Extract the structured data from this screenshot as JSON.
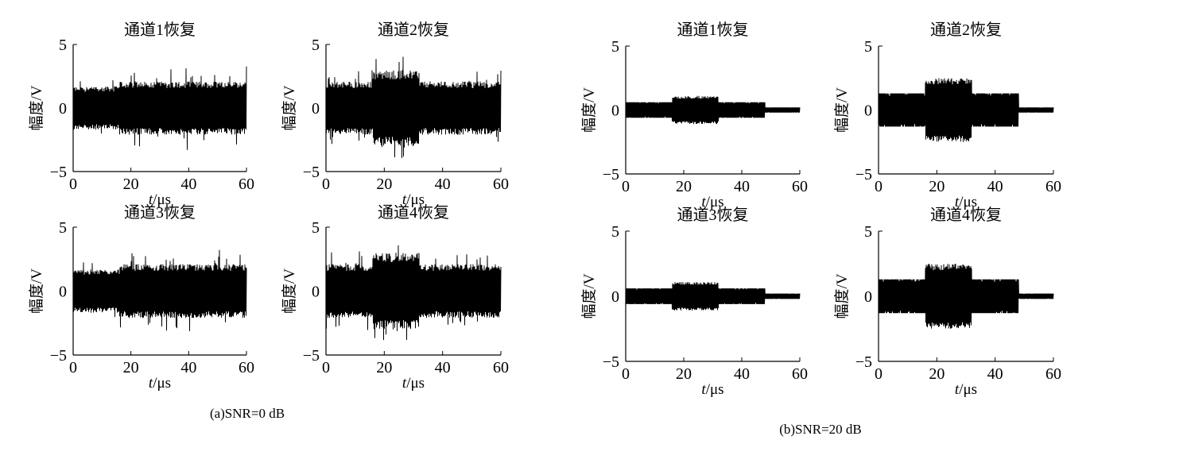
{
  "captions": [
    "(a)SNR=0 dB",
    "(b)SNR=20 dB"
  ],
  "chart_data": [
    {
      "type": "line",
      "panel": "(a)SNR=0 dB",
      "title": "通道1恢复",
      "xlabel_var": "t",
      "xlabel_unit": "/μs",
      "ylabel": "幅度/V",
      "xlim": [
        0,
        60
      ],
      "ylim": [
        -5,
        5
      ],
      "xticks": [
        "0",
        "20",
        "40",
        "60"
      ],
      "yticks": [
        "5",
        "0",
        "−5"
      ],
      "grid": false,
      "color": "#000000",
      "envelope": [
        {
          "t": [
            0,
            16
          ],
          "amp": 1.7,
          "peak": 2.4
        },
        {
          "t": [
            16,
            60
          ],
          "amp": 2.1,
          "peak": 3.2
        }
      ]
    },
    {
      "type": "line",
      "panel": "(a)SNR=0 dB",
      "title": "通道2恢复",
      "xlabel_var": "t",
      "xlabel_unit": "/μs",
      "ylabel": "幅度/V",
      "xlim": [
        0,
        60
      ],
      "ylim": [
        -5,
        5
      ],
      "xticks": [
        "0",
        "20",
        "40",
        "60"
      ],
      "yticks": [
        "5",
        "0",
        "−5"
      ],
      "grid": false,
      "color": "#000000",
      "envelope": [
        {
          "t": [
            0,
            16
          ],
          "amp": 2.1,
          "peak": 3.1
        },
        {
          "t": [
            16,
            32
          ],
          "amp": 3.0,
          "peak": 4.2
        },
        {
          "t": [
            32,
            60
          ],
          "amp": 2.1,
          "peak": 3.0
        }
      ]
    },
    {
      "type": "line",
      "panel": "(a)SNR=0 dB",
      "title": "通道3恢复",
      "xlabel_var": "t",
      "xlabel_unit": "/μs",
      "ylabel": "幅度/V",
      "xlim": [
        0,
        60
      ],
      "ylim": [
        -5,
        5
      ],
      "xticks": [
        "0",
        "20",
        "40",
        "60"
      ],
      "yticks": [
        "5",
        "0",
        "−5"
      ],
      "grid": false,
      "color": "#000000",
      "envelope": [
        {
          "t": [
            0,
            16
          ],
          "amp": 1.7,
          "peak": 2.4
        },
        {
          "t": [
            16,
            60
          ],
          "amp": 2.1,
          "peak": 3.2
        }
      ]
    },
    {
      "type": "line",
      "panel": "(a)SNR=0 dB",
      "title": "通道4恢复",
      "xlabel_var": "t",
      "xlabel_unit": "/μs",
      "ylabel": "幅度/V",
      "xlim": [
        0,
        60
      ],
      "ylim": [
        -5,
        5
      ],
      "xticks": [
        "0",
        "20",
        "40",
        "60"
      ],
      "yticks": [
        "5",
        "0",
        "−5"
      ],
      "grid": false,
      "color": "#000000",
      "envelope": [
        {
          "t": [
            0,
            16
          ],
          "amp": 2.1,
          "peak": 3.2
        },
        {
          "t": [
            16,
            32
          ],
          "amp": 3.0,
          "peak": 4.2
        },
        {
          "t": [
            32,
            60
          ],
          "amp": 2.1,
          "peak": 3.0
        }
      ]
    },
    {
      "type": "line",
      "panel": "(b)SNR=20 dB",
      "title": "通道1恢复",
      "xlabel_var": "t",
      "xlabel_unit": "/μs",
      "ylabel": "幅度/V",
      "xlim": [
        0,
        60
      ],
      "ylim": [
        -5,
        5
      ],
      "xticks": [
        "0",
        "20",
        "40",
        "60"
      ],
      "yticks": [
        "5",
        "0",
        "−5"
      ],
      "grid": false,
      "color": "#000000",
      "envelope": [
        {
          "t": [
            0,
            16
          ],
          "amp": 0.6,
          "peak": 0.7
        },
        {
          "t": [
            16,
            32
          ],
          "amp": 1.1,
          "peak": 1.2
        },
        {
          "t": [
            32,
            48
          ],
          "amp": 0.6,
          "peak": 0.7
        },
        {
          "t": [
            48,
            60
          ],
          "amp": 0.2,
          "peak": 0.25
        }
      ]
    },
    {
      "type": "line",
      "panel": "(b)SNR=20 dB",
      "title": "通道2恢复",
      "xlabel_var": "t",
      "xlabel_unit": "/μs",
      "ylabel": "幅度/V",
      "xlim": [
        0,
        60
      ],
      "ylim": [
        -5,
        5
      ],
      "xticks": [
        "0",
        "20",
        "40",
        "60"
      ],
      "yticks": [
        "5",
        "0",
        "−5"
      ],
      "grid": false,
      "color": "#000000",
      "envelope": [
        {
          "t": [
            0,
            16
          ],
          "amp": 1.3,
          "peak": 1.4
        },
        {
          "t": [
            16,
            32
          ],
          "amp": 2.5,
          "peak": 2.6
        },
        {
          "t": [
            32,
            48
          ],
          "amp": 1.3,
          "peak": 1.4
        },
        {
          "t": [
            48,
            60
          ],
          "amp": 0.2,
          "peak": 0.25
        }
      ]
    },
    {
      "type": "line",
      "panel": "(b)SNR=20 dB",
      "title": "通道3恢复",
      "xlabel_var": "t",
      "xlabel_unit": "/μs",
      "ylabel": "幅度/V",
      "xlim": [
        0,
        60
      ],
      "ylim": [
        -5,
        5
      ],
      "xticks": [
        "0",
        "20",
        "40",
        "60"
      ],
      "yticks": [
        "5",
        "0",
        "−5"
      ],
      "grid": false,
      "color": "#000000",
      "envelope": [
        {
          "t": [
            0,
            16
          ],
          "amp": 0.6,
          "peak": 0.7
        },
        {
          "t": [
            16,
            32
          ],
          "amp": 1.1,
          "peak": 1.2
        },
        {
          "t": [
            32,
            48
          ],
          "amp": 0.6,
          "peak": 0.7
        },
        {
          "t": [
            48,
            60
          ],
          "amp": 0.2,
          "peak": 0.25
        }
      ]
    },
    {
      "type": "line",
      "panel": "(b)SNR=20 dB",
      "title": "通道4恢复",
      "xlabel_var": "t",
      "xlabel_unit": "/μs",
      "ylabel": "幅度/V",
      "xlim": [
        0,
        60
      ],
      "ylim": [
        -5,
        5
      ],
      "xticks": [
        "0",
        "20",
        "40",
        "60"
      ],
      "yticks": [
        "5",
        "0",
        "−5"
      ],
      "grid": false,
      "color": "#000000",
      "envelope": [
        {
          "t": [
            0,
            16
          ],
          "amp": 1.3,
          "peak": 1.4
        },
        {
          "t": [
            16,
            32
          ],
          "amp": 2.5,
          "peak": 2.6
        },
        {
          "t": [
            32,
            48
          ],
          "amp": 1.3,
          "peak": 1.4
        },
        {
          "t": [
            48,
            60
          ],
          "amp": 0.2,
          "peak": 0.25
        }
      ]
    }
  ]
}
